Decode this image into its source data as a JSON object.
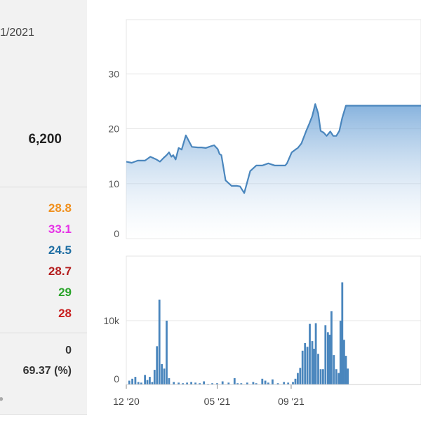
{
  "left_panel": {
    "date": "1/2021",
    "price": "6,200",
    "stats": [
      {
        "value": "28.8",
        "color": "#f0901e"
      },
      {
        "value": "33.1",
        "color": "#e632e6"
      },
      {
        "value": "24.5",
        "color": "#1f6ea3"
      },
      {
        "value": "28.7",
        "color": "#b41e1e"
      },
      {
        "value": "29",
        "color": "#2aa42a"
      },
      {
        "value": "28",
        "color": "#c81e1e"
      }
    ],
    "extra_value_1": "0",
    "extra_value_2": "69.37 (%)"
  },
  "chart_data": [
    {
      "type": "area",
      "ylim": [
        0,
        40
      ],
      "yticks": [
        "0",
        "10",
        "20",
        "30"
      ],
      "color": "#4a86bd",
      "x": [
        "2020-12-01",
        "2020-12-10",
        "2020-12-20",
        "2021-01-01",
        "2021-01-10",
        "2021-01-20",
        "2021-01-26",
        "2021-02-01",
        "2021-02-06",
        "2021-02-10",
        "2021-02-14",
        "2021-02-17",
        "2021-02-21",
        "2021-02-26",
        "2021-03-03",
        "2021-03-10",
        "2021-03-20",
        "2021-03-30",
        "2021-04-05",
        "2021-04-12",
        "2021-04-20",
        "2021-04-26",
        "2021-05-02",
        "2021-05-05",
        "2021-05-08",
        "2021-05-15",
        "2021-05-25",
        "2021-05-30",
        "2021-06-03",
        "2021-06-08",
        "2021-06-15",
        "2021-06-25",
        "2021-07-05",
        "2021-07-15",
        "2021-07-25",
        "2021-08-05",
        "2021-08-15",
        "2021-08-22",
        "2021-08-25",
        "2021-09-02",
        "2021-09-08",
        "2021-09-12",
        "2021-09-18",
        "2021-09-26",
        "2021-10-01",
        "2021-10-06",
        "2021-10-11",
        "2021-10-16",
        "2021-10-20",
        "2021-10-25",
        "2021-10-30",
        "2021-11-05",
        "2021-11-10",
        "2021-11-15",
        "2021-11-20",
        "2021-11-25",
        "2021-12-01",
        "2021-12-04"
      ],
      "values": [
        14.0,
        13.8,
        14.2,
        14.2,
        14.9,
        14.4,
        14.0,
        14.7,
        15.2,
        15.7,
        14.9,
        15.2,
        14.4,
        16.5,
        16.2,
        18.8,
        16.7,
        16.6,
        16.6,
        16.5,
        16.8,
        17.0,
        16.3,
        15.4,
        15.2,
        10.6,
        9.6,
        9.6,
        9.6,
        9.5,
        8.3,
        12.3,
        13.3,
        13.3,
        13.7,
        13.3,
        13.3,
        13.3,
        13.7,
        15.7,
        16.2,
        16.5,
        17.3,
        19.6,
        20.9,
        22.3,
        24.5,
        22.8,
        19.6,
        19.3,
        18.7,
        19.5,
        18.7,
        18.7,
        19.6,
        22.0,
        24.2,
        24.2
      ]
    },
    {
      "type": "bar",
      "ylim": [
        0,
        20000
      ],
      "yticks": [
        "0",
        "10k"
      ],
      "xticks": [
        "12 '20",
        "05 '21",
        "09 '21"
      ],
      "color": "#4a86bd",
      "x": [
        "2020-12-06",
        "2020-12-11",
        "2020-12-16",
        "2020-12-21",
        "2020-12-26",
        "2021-01-01",
        "2021-01-05",
        "2021-01-09",
        "2021-01-13",
        "2021-01-17",
        "2021-01-21",
        "2021-01-25",
        "2021-01-29",
        "2021-02-02",
        "2021-02-06",
        "2021-02-10",
        "2021-02-18",
        "2021-02-26",
        "2021-03-05",
        "2021-03-12",
        "2021-03-19",
        "2021-03-26",
        "2021-04-02",
        "2021-04-09",
        "2021-04-16",
        "2021-04-23",
        "2021-05-01",
        "2021-05-10",
        "2021-05-20",
        "2021-05-30",
        "2021-06-04",
        "2021-06-10",
        "2021-06-20",
        "2021-06-30",
        "2021-07-05",
        "2021-07-15",
        "2021-07-20",
        "2021-07-25",
        "2021-08-01",
        "2021-08-10",
        "2021-08-20",
        "2021-08-27",
        "2021-09-04",
        "2021-09-08",
        "2021-09-12",
        "2021-09-16",
        "2021-09-20",
        "2021-09-24",
        "2021-09-28",
        "2021-10-02",
        "2021-10-06",
        "2021-10-09",
        "2021-10-12",
        "2021-10-16",
        "2021-10-20",
        "2021-10-24",
        "2021-10-28",
        "2021-11-01",
        "2021-11-04",
        "2021-11-07",
        "2021-11-11",
        "2021-11-15",
        "2021-11-19",
        "2021-11-22",
        "2021-11-25",
        "2021-11-28",
        "2021-12-01",
        "2021-12-04"
      ],
      "values": [
        600,
        900,
        1200,
        400,
        300,
        1500,
        700,
        1200,
        400,
        2300,
        6000,
        13300,
        3200,
        2500,
        10000,
        1000,
        400,
        300,
        200,
        300,
        400,
        300,
        200,
        500,
        100,
        200,
        200,
        500,
        300,
        1000,
        200,
        200,
        300,
        400,
        200,
        900,
        600,
        300,
        800,
        200,
        400,
        300,
        400,
        900,
        1800,
        2600,
        5300,
        6500,
        5900,
        9500,
        6800,
        5600,
        9600,
        4800,
        2400,
        2400,
        9300,
        8200,
        7800,
        11500,
        4600,
        2400,
        1800,
        10000,
        16000,
        7000,
        4500,
        2500
      ]
    }
  ]
}
